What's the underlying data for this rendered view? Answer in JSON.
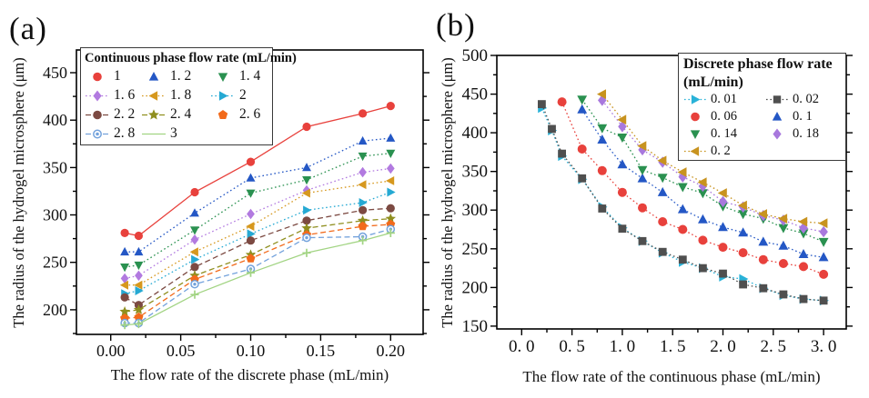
{
  "figure": {
    "background": "#ffffff"
  },
  "chart_data": [
    {
      "panel_label": "(a)",
      "type": "line",
      "title": "",
      "xlabel": "The flow rate of the discrete phase  (mL/min)",
      "ylabel": "The radius of the hydrogel microsphere (μm)",
      "xlim": [
        -0.0245,
        0.2232
      ],
      "ylim": [
        174,
        474
      ],
      "grid": false,
      "xticks": {
        "values": [
          0,
          0.05,
          0.1,
          0.15,
          0.2
        ],
        "labels": [
          "0.00",
          "0.05",
          "0.10",
          "0.15",
          "0.20"
        ],
        "minor_step": 0.025
      },
      "yticks": {
        "values": [
          200,
          250,
          300,
          350,
          400,
          450
        ],
        "labels": [
          "200",
          "250",
          "300",
          "350",
          "400",
          "450"
        ],
        "minor_step": 25
      },
      "legend": {
        "title_line1": "Continuous phase flow rate (mL/min)",
        "title_line2": "",
        "position": "top-left",
        "columns": 3
      },
      "x": [
        0.01,
        0.02,
        0.06,
        0.1,
        0.14,
        0.18,
        0.2
      ],
      "series": [
        {
          "name": "1",
          "label": "1",
          "color": "#e8413c",
          "marker": "circle",
          "line": "solid",
          "legend_line": false,
          "values": [
            281,
            278,
            324,
            356,
            393,
            407,
            415
          ]
        },
        {
          "name": "1.2",
          "label": "1. 2",
          "color": "#2457c5",
          "marker": "triangle-up",
          "line": "dot",
          "legend_line": false,
          "values": [
            261,
            261,
            302,
            339,
            350,
            378,
            381
          ]
        },
        {
          "name": "1.4",
          "label": "1. 4",
          "color": "#2a9150",
          "marker": "triangle-down",
          "line": "dot",
          "legend_line": false,
          "values": [
            245,
            247,
            284,
            323,
            337,
            362,
            365
          ]
        },
        {
          "name": "1.6",
          "label": "1. 6",
          "color": "#b27ae0",
          "marker": "diamond",
          "line": "dot",
          "legend_line": true,
          "values": [
            233,
            236,
            274,
            301,
            326,
            345,
            349
          ]
        },
        {
          "name": "1.8",
          "label": "1. 8",
          "color": "#d6981e",
          "marker": "triangle-left",
          "line": "dot",
          "legend_line": true,
          "values": [
            226,
            226,
            261,
            288,
            323,
            332,
            336
          ]
        },
        {
          "name": "2",
          "label": "2",
          "color": "#25a9d3",
          "marker": "triangle-right",
          "line": "dot",
          "legend_line": true,
          "values": [
            217,
            220,
            253,
            280,
            305,
            313,
            324
          ]
        },
        {
          "name": "2.2",
          "label": "2. 2",
          "color": "#7c4a42",
          "marker": "circle",
          "line": "dash",
          "legend_line": true,
          "values": [
            213,
            205,
            245,
            273,
            294,
            305,
            307
          ]
        },
        {
          "name": "2.4",
          "label": "2. 4",
          "color": "#8f8f1f",
          "marker": "star",
          "line": "dash",
          "legend_line": true,
          "values": [
            198,
            200,
            236,
            258,
            286,
            294,
            296
          ]
        },
        {
          "name": "2.6",
          "label": "2. 6",
          "color": "#f26a1b",
          "marker": "pentagon",
          "line": "dash",
          "legend_line": false,
          "values": [
            191,
            192,
            232,
            254,
            279,
            288,
            290
          ]
        },
        {
          "name": "2.8",
          "label": "2. 8",
          "color": "#73a2dc",
          "marker": "circle-dot",
          "line": "dash",
          "legend_line": true,
          "values": [
            186,
            186,
            227,
            243,
            276,
            277,
            285
          ]
        },
        {
          "name": "3",
          "label": "3",
          "color": "#a2d483",
          "marker": "plus",
          "line": "solid",
          "legend_line": true,
          "legend_marker": false,
          "values": [
            184,
            185,
            216,
            239,
            260,
            273,
            281
          ]
        }
      ]
    },
    {
      "panel_label": "(b)",
      "type": "line",
      "title": "",
      "xlabel": "The flow rate of the continuous phase (mL/min)",
      "ylabel": "The radius of the hydrogel microsphere (μm)",
      "xlim": [
        -0.247,
        3.225
      ],
      "ylim": [
        146.4,
        500
      ],
      "grid": false,
      "xticks": {
        "values": [
          0,
          0.5,
          1,
          1.5,
          2,
          2.5,
          3
        ],
        "labels": [
          "0. 0",
          "0. 5",
          "1. 0",
          "1. 5",
          "2. 0",
          "2. 5",
          "3. 0"
        ],
        "minor_step": 0.25
      },
      "yticks": {
        "values": [
          150,
          200,
          250,
          300,
          350,
          400,
          450,
          500
        ],
        "labels": [
          "150",
          "200",
          "250",
          "300",
          "350",
          "400",
          "450",
          "500"
        ],
        "minor_step": 25
      },
      "legend": {
        "title_line1": "Discrete phase flow rate",
        "title_line2": "(mL/min)",
        "position": "top-right",
        "columns": 2
      },
      "series": [
        {
          "name": "0.01",
          "label": "0. 01",
          "color": "#29b2d8",
          "marker": "triangle-right",
          "line": "dot",
          "legend_line": true,
          "x": [
            0.2,
            0.3,
            0.4,
            0.6,
            0.8,
            1.0,
            1.2,
            1.4,
            1.6,
            1.8,
            2.0,
            2.2,
            2.4,
            2.6,
            2.8,
            3.0
          ],
          "values": [
            432,
            403,
            370,
            340,
            304,
            277,
            260,
            245,
            233,
            225,
            214,
            211,
            199,
            190,
            185,
            183
          ]
        },
        {
          "name": "0.02",
          "label": "0. 02",
          "color": "#4f4f4f",
          "marker": "square",
          "line": "dot",
          "legend_line": true,
          "x": [
            0.2,
            0.3,
            0.4,
            0.6,
            0.8,
            1.0,
            1.2,
            1.4,
            1.6,
            1.8,
            2.0,
            2.2,
            2.4,
            2.6,
            2.8,
            3.0
          ],
          "values": [
            437,
            405,
            373,
            341,
            302,
            276,
            260,
            246,
            236,
            225,
            218,
            204,
            199,
            191,
            185,
            183
          ]
        },
        {
          "name": "0.06",
          "label": "0. 06",
          "color": "#e8413c",
          "marker": "circle",
          "line": "dot",
          "legend_line": false,
          "x": [
            0.4,
            0.6,
            0.8,
            1.0,
            1.2,
            1.4,
            1.6,
            1.8,
            2.0,
            2.2,
            2.4,
            2.6,
            2.8,
            3.0
          ],
          "values": [
            440,
            379,
            351,
            323,
            303,
            285,
            275,
            261,
            252,
            245,
            236,
            231,
            227,
            217
          ]
        },
        {
          "name": "0.1",
          "label": "0. 1",
          "color": "#2457c5",
          "marker": "triangle-up",
          "line": "dot",
          "legend_line": false,
          "x": [
            0.6,
            0.8,
            1.0,
            1.2,
            1.4,
            1.6,
            1.8,
            2.0,
            2.2,
            2.4,
            2.6,
            2.8,
            3.0
          ],
          "values": [
            430,
            391,
            359,
            341,
            323,
            301,
            288,
            278,
            271,
            259,
            254,
            243,
            239
          ]
        },
        {
          "name": "0.14",
          "label": "0. 14",
          "color": "#2a9150",
          "marker": "triangle-down",
          "line": "dot",
          "legend_line": false,
          "x": [
            0.6,
            0.8,
            1.0,
            1.2,
            1.4,
            1.6,
            1.8,
            2.0,
            2.2,
            2.4,
            2.6,
            2.8,
            3.0
          ],
          "values": [
            443,
            406,
            394,
            352,
            342,
            330,
            322,
            305,
            295,
            289,
            277,
            270,
            259
          ]
        },
        {
          "name": "0.18",
          "label": "0. 18",
          "color": "#a878dd",
          "marker": "diamond",
          "line": "dot",
          "legend_line": false,
          "x": [
            0.8,
            1.0,
            1.2,
            1.4,
            1.6,
            1.8,
            2.0,
            2.2,
            2.4,
            2.6,
            2.8,
            3.0
          ],
          "values": [
            442,
            408,
            378,
            362,
            343,
            331,
            311,
            304,
            293,
            287,
            277,
            272
          ]
        },
        {
          "name": "0.2",
          "label": "0. 2",
          "color": "#c8931f",
          "marker": "triangle-left",
          "line": "dot",
          "legend_line": true,
          "x": [
            0.8,
            1.0,
            1.2,
            1.4,
            1.6,
            1.8,
            2.0,
            2.2,
            2.4,
            2.6,
            2.8,
            3.0
          ],
          "values": [
            450,
            417,
            383,
            364,
            349,
            336,
            322,
            306,
            295,
            289,
            285,
            283
          ]
        }
      ]
    }
  ]
}
